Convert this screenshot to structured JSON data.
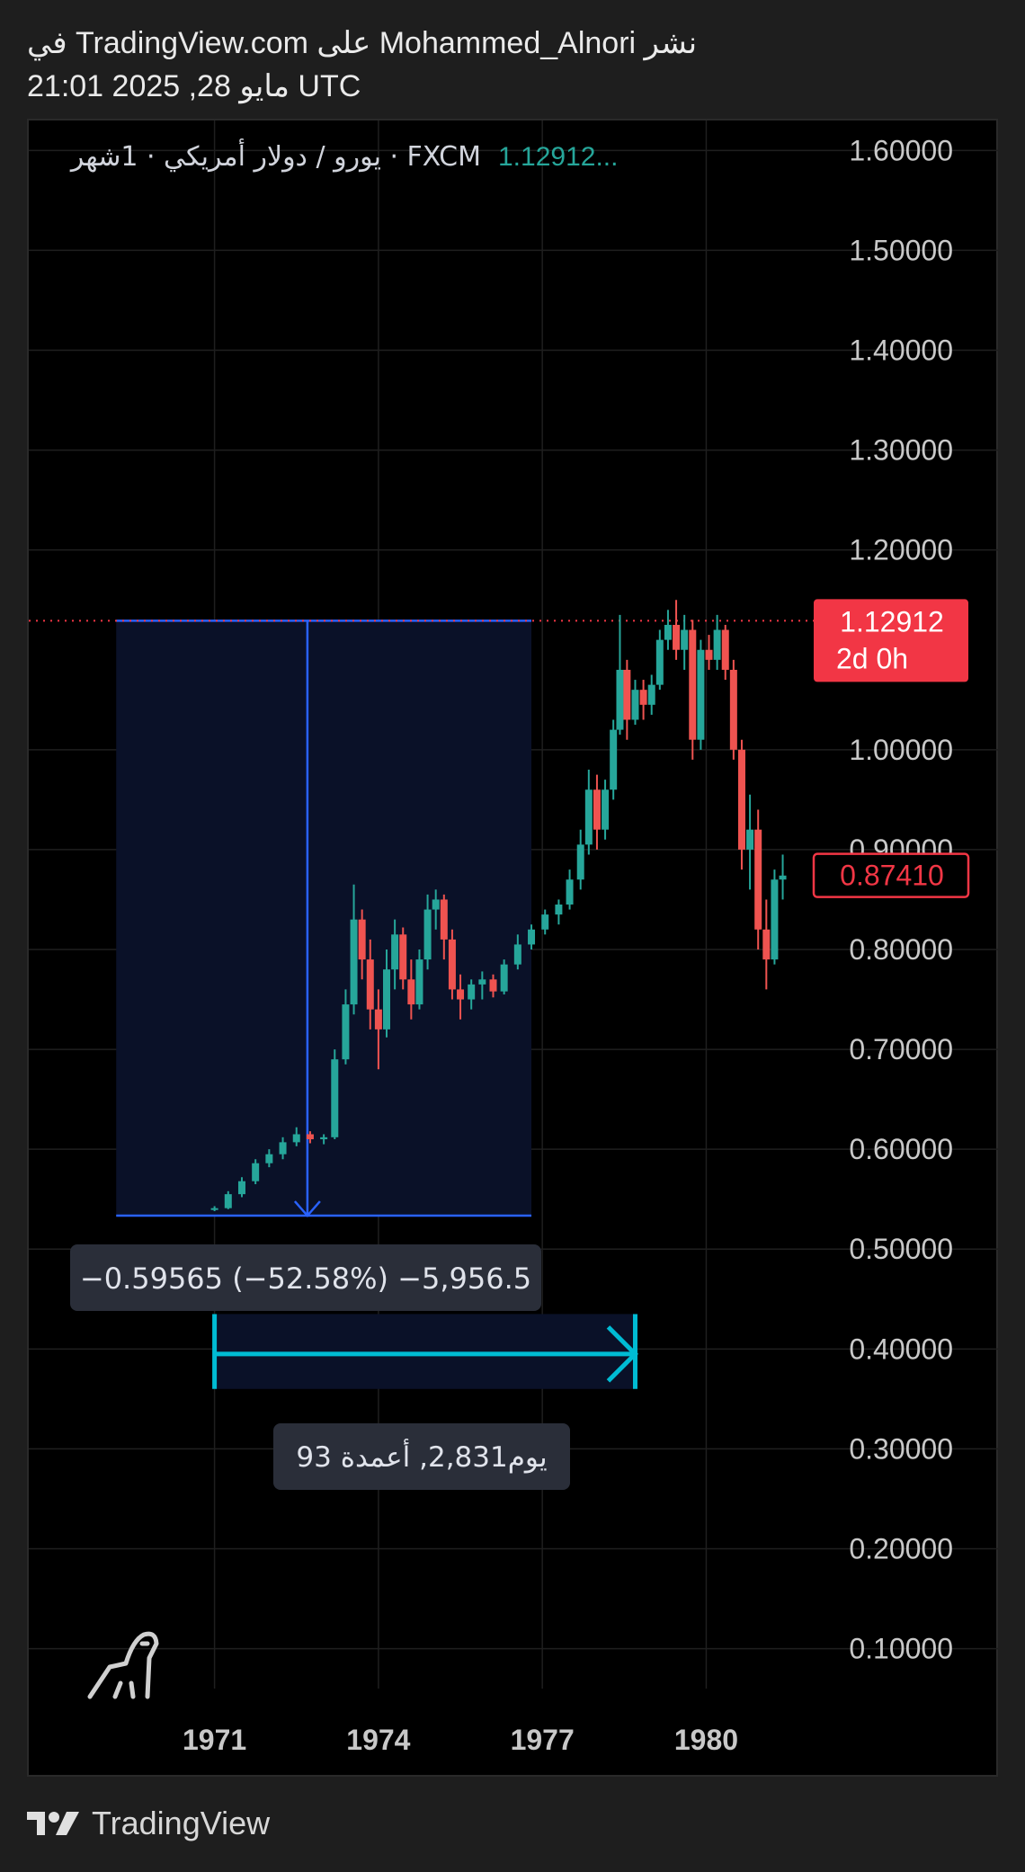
{
  "header": {
    "published_line": "نشر Mohammed_Alnori على TradingView.com في",
    "date_line": "21:01 2025 ,28 مايو UTC"
  },
  "footer": {
    "brand": "TradingView"
  },
  "chart_data": {
    "type": "candlestick",
    "title": "يورو / دولار أمريكي · 1شهر · FXCM",
    "legend_value": "1.12912...",
    "y_ticks": [
      "1.60000",
      "1.50000",
      "1.40000",
      "1.30000",
      "1.20000",
      "1.00000",
      "0.90000",
      "0.80000",
      "0.70000",
      "0.60000",
      "0.50000",
      "0.40000",
      "0.30000",
      "0.20000",
      "0.10000"
    ],
    "x_ticks": [
      "1971",
      "1974",
      "1977",
      "1980"
    ],
    "ylim": [
      0.06,
      1.63
    ],
    "xlim": [
      1967.6,
      1982.0
    ],
    "grid": true,
    "last_price": {
      "value": 1.12912,
      "label": "1.12912",
      "countdown": "2d 0h",
      "color": "#f23645"
    },
    "marker_price": {
      "value": 0.8741,
      "label": "0.87410",
      "color": "#f23645"
    },
    "measure": {
      "price_box": {
        "x0": 1969.2,
        "x1": 1976.8,
        "y_top": 1.12912,
        "y_bottom": 0.5335,
        "arrow_x": 1972.7
      },
      "price_label": "−0.59565 (−52.58%) −5,956.5",
      "time_box": {
        "x0": 1971.0,
        "x1": 1978.7,
        "y_top": 0.435,
        "y_bottom": 0.36,
        "arrow_y": 0.395
      },
      "time_label": "93 يوم2,831, أعمدة"
    },
    "series": [
      {
        "up_color": "#26a69a",
        "down_color": "#ef5350",
        "ohlc": [
          [
            1971.0,
            0.54,
            0.543,
            0.538,
            0.541
          ],
          [
            1971.25,
            0.541,
            0.558,
            0.54,
            0.555
          ],
          [
            1971.5,
            0.555,
            0.572,
            0.552,
            0.568
          ],
          [
            1971.75,
            0.568,
            0.59,
            0.565,
            0.586
          ],
          [
            1972.0,
            0.586,
            0.6,
            0.582,
            0.595
          ],
          [
            1972.25,
            0.595,
            0.612,
            0.59,
            0.607
          ],
          [
            1972.5,
            0.607,
            0.622,
            0.603,
            0.615
          ],
          [
            1972.75,
            0.615,
            0.618,
            0.606,
            0.61
          ],
          [
            1973.0,
            0.61,
            0.615,
            0.605,
            0.612
          ],
          [
            1973.2,
            0.612,
            0.7,
            0.61,
            0.69
          ],
          [
            1973.4,
            0.69,
            0.76,
            0.685,
            0.745
          ],
          [
            1973.55,
            0.745,
            0.865,
            0.735,
            0.83
          ],
          [
            1973.7,
            0.83,
            0.84,
            0.77,
            0.79
          ],
          [
            1973.85,
            0.79,
            0.81,
            0.72,
            0.74
          ],
          [
            1974.0,
            0.74,
            0.76,
            0.68,
            0.72
          ],
          [
            1974.15,
            0.72,
            0.8,
            0.712,
            0.78
          ],
          [
            1974.3,
            0.78,
            0.83,
            0.76,
            0.815
          ],
          [
            1974.45,
            0.815,
            0.822,
            0.76,
            0.77
          ],
          [
            1974.6,
            0.77,
            0.79,
            0.73,
            0.745
          ],
          [
            1974.75,
            0.745,
            0.8,
            0.74,
            0.79
          ],
          [
            1974.9,
            0.79,
            0.855,
            0.78,
            0.84
          ],
          [
            1975.05,
            0.84,
            0.86,
            0.82,
            0.85
          ],
          [
            1975.2,
            0.85,
            0.855,
            0.79,
            0.81
          ],
          [
            1975.35,
            0.81,
            0.82,
            0.75,
            0.76
          ],
          [
            1975.5,
            0.76,
            0.775,
            0.73,
            0.75
          ],
          [
            1975.7,
            0.75,
            0.77,
            0.74,
            0.765
          ],
          [
            1975.9,
            0.765,
            0.778,
            0.75,
            0.77
          ],
          [
            1976.1,
            0.77,
            0.775,
            0.752,
            0.758
          ],
          [
            1976.3,
            0.758,
            0.79,
            0.755,
            0.785
          ],
          [
            1976.55,
            0.785,
            0.815,
            0.78,
            0.805
          ],
          [
            1976.8,
            0.805,
            0.825,
            0.8,
            0.82
          ],
          [
            1977.05,
            0.82,
            0.84,
            0.815,
            0.835
          ],
          [
            1977.3,
            0.835,
            0.85,
            0.825,
            0.845
          ],
          [
            1977.5,
            0.845,
            0.88,
            0.84,
            0.87
          ],
          [
            1977.7,
            0.87,
            0.92,
            0.86,
            0.905
          ],
          [
            1977.85,
            0.905,
            0.98,
            0.895,
            0.96
          ],
          [
            1978.0,
            0.96,
            0.975,
            0.9,
            0.92
          ],
          [
            1978.15,
            0.92,
            0.97,
            0.91,
            0.96
          ],
          [
            1978.3,
            0.96,
            1.03,
            0.95,
            1.02
          ],
          [
            1978.42,
            1.02,
            1.135,
            1.015,
            1.08
          ],
          [
            1978.55,
            1.08,
            1.09,
            1.01,
            1.03
          ],
          [
            1978.7,
            1.03,
            1.07,
            1.025,
            1.06
          ],
          [
            1978.85,
            1.06,
            1.07,
            1.03,
            1.045
          ],
          [
            1979.0,
            1.045,
            1.075,
            1.035,
            1.065
          ],
          [
            1979.15,
            1.065,
            1.12,
            1.06,
            1.11
          ],
          [
            1979.3,
            1.11,
            1.14,
            1.1,
            1.125
          ],
          [
            1979.45,
            1.125,
            1.15,
            1.09,
            1.1
          ],
          [
            1979.6,
            1.1,
            1.135,
            1.08,
            1.12
          ],
          [
            1979.75,
            1.12,
            1.13,
            0.99,
            1.01
          ],
          [
            1979.9,
            1.01,
            1.11,
            1.0,
            1.1
          ],
          [
            1980.05,
            1.1,
            1.115,
            1.08,
            1.09
          ],
          [
            1980.2,
            1.09,
            1.135,
            1.08,
            1.12
          ],
          [
            1980.35,
            1.12,
            1.125,
            1.07,
            1.08
          ],
          [
            1980.5,
            1.08,
            1.09,
            0.99,
            1.0
          ],
          [
            1980.65,
            1.0,
            1.01,
            0.88,
            0.9
          ],
          [
            1980.8,
            0.9,
            0.955,
            0.86,
            0.92
          ],
          [
            1980.95,
            0.92,
            0.94,
            0.8,
            0.82
          ],
          [
            1981.1,
            0.82,
            0.85,
            0.76,
            0.79
          ],
          [
            1981.25,
            0.79,
            0.88,
            0.785,
            0.87
          ],
          [
            1981.4,
            0.87,
            0.895,
            0.85,
            0.874
          ]
        ]
      }
    ]
  }
}
